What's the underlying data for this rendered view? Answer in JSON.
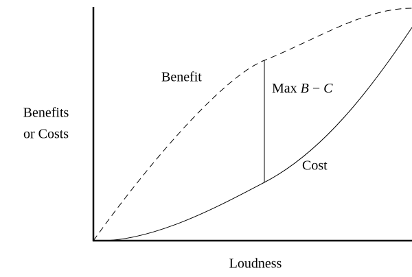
{
  "axis_labels": {
    "y": [
      "Benefits",
      "or Costs"
    ],
    "x": "Loudness"
  },
  "curves": {
    "benefit": "Benefit",
    "cost": "Cost"
  },
  "annotation": [
    "Max",
    "B",
    "−",
    "C"
  ]
}
